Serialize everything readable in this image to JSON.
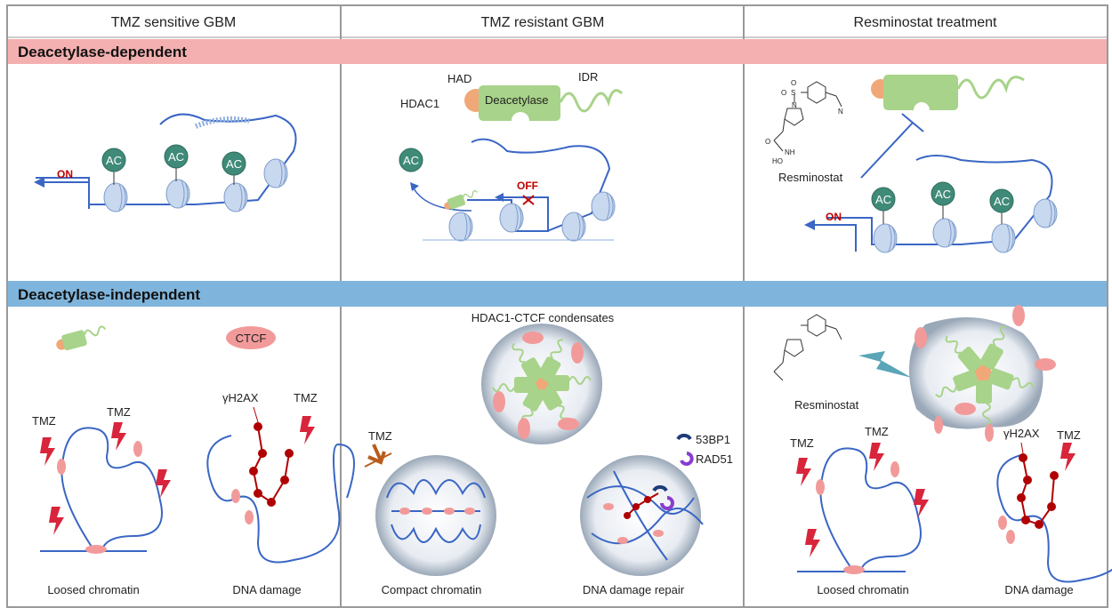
{
  "columns": [
    "TMZ sensitive GBM",
    "TMZ resistant GBM",
    "Resminostat treatment"
  ],
  "bands": {
    "dependent": {
      "label": "Deacetylase-dependent",
      "color": "#f4b0b0"
    },
    "independent": {
      "label": "Deacetylase-independent",
      "color": "#7fb5dc"
    }
  },
  "row1": {
    "sensitive": {
      "acetyl": "AC",
      "status": "ON"
    },
    "resistant": {
      "protein": "HDAC1",
      "domain_had": "HAD",
      "domain_deacetylase": "Deacetylase",
      "domain_idr": "IDR",
      "acetyl": "AC",
      "status": "OFF"
    },
    "treatment": {
      "drug": "Resminostat",
      "acetyl": "AC",
      "status": "ON"
    }
  },
  "row2": {
    "sensitive": {
      "ctcf": "CTCF",
      "tmz": "TMZ",
      "gh2ax": "γH2AX",
      "caption_left": "Loosed chromatin",
      "caption_right": "DNA damage"
    },
    "resistant": {
      "title": "HDAC1-CTCF condensates",
      "tmz": "TMZ",
      "legend_53bp1": "53BP1",
      "legend_rad51": "RAD51",
      "caption_left": "Compact chromatin",
      "caption_right": "DNA damage repair"
    },
    "treatment": {
      "drug": "Resminostat",
      "tmz": "TMZ",
      "gh2ax": "γH2AX",
      "caption_left": "Loosed chromatin",
      "caption_right": "DNA damage"
    }
  },
  "chem_atoms": {
    "o": "O",
    "s": "S",
    "n": "N",
    "nh": "NH",
    "ho": "HO"
  },
  "colors": {
    "dna": "#3a66c4",
    "hdac_green": "#a8d38a",
    "had_orange": "#f0a878",
    "ctcf_pink": "#f29a9a",
    "tmz_red": "#d8253c",
    "ac_teal": "#3f8a78",
    "gh2ax_red": "#b00000"
  }
}
